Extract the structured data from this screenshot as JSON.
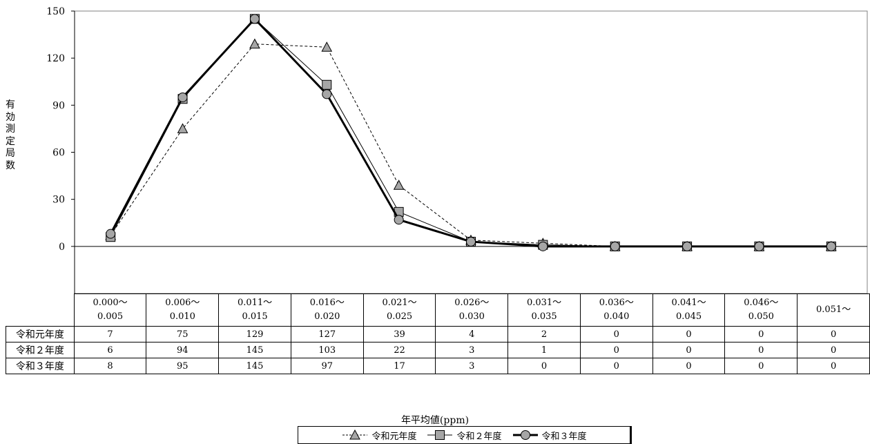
{
  "chart_data": {
    "type": "line",
    "ylabel": "有効測定局数",
    "xlabel": "年平均値(ppm)",
    "ylim": [
      -30,
      150
    ],
    "yticks": [
      0,
      30,
      60,
      90,
      120,
      150
    ],
    "grid": false,
    "legend_position": "bottom",
    "categories": [
      [
        "0.000～",
        "0.005"
      ],
      [
        "0.006～",
        "0.010"
      ],
      [
        "0.011～",
        "0.015"
      ],
      [
        "0.016～",
        "0.020"
      ],
      [
        "0.021～",
        "0.025"
      ],
      [
        "0.026～",
        "0.030"
      ],
      [
        "0.031～",
        "0.035"
      ],
      [
        "0.036～",
        "0.040"
      ],
      [
        "0.041～",
        "0.045"
      ],
      [
        "0.046～",
        "0.050"
      ],
      [
        "0.051～"
      ]
    ],
    "series": [
      {
        "name": "令和元年度",
        "values": [
          7,
          75,
          129,
          127,
          39,
          4,
          2,
          0,
          0,
          0,
          0
        ],
        "marker": "triangle",
        "line": "dashed"
      },
      {
        "name": "令和２年度",
        "values": [
          6,
          94,
          145,
          103,
          22,
          3,
          1,
          0,
          0,
          0,
          0
        ],
        "marker": "square",
        "line": "thin"
      },
      {
        "name": "令和３年度",
        "values": [
          8,
          95,
          145,
          97,
          17,
          3,
          0,
          0,
          0,
          0,
          0
        ],
        "marker": "circle",
        "line": "thick"
      }
    ]
  }
}
